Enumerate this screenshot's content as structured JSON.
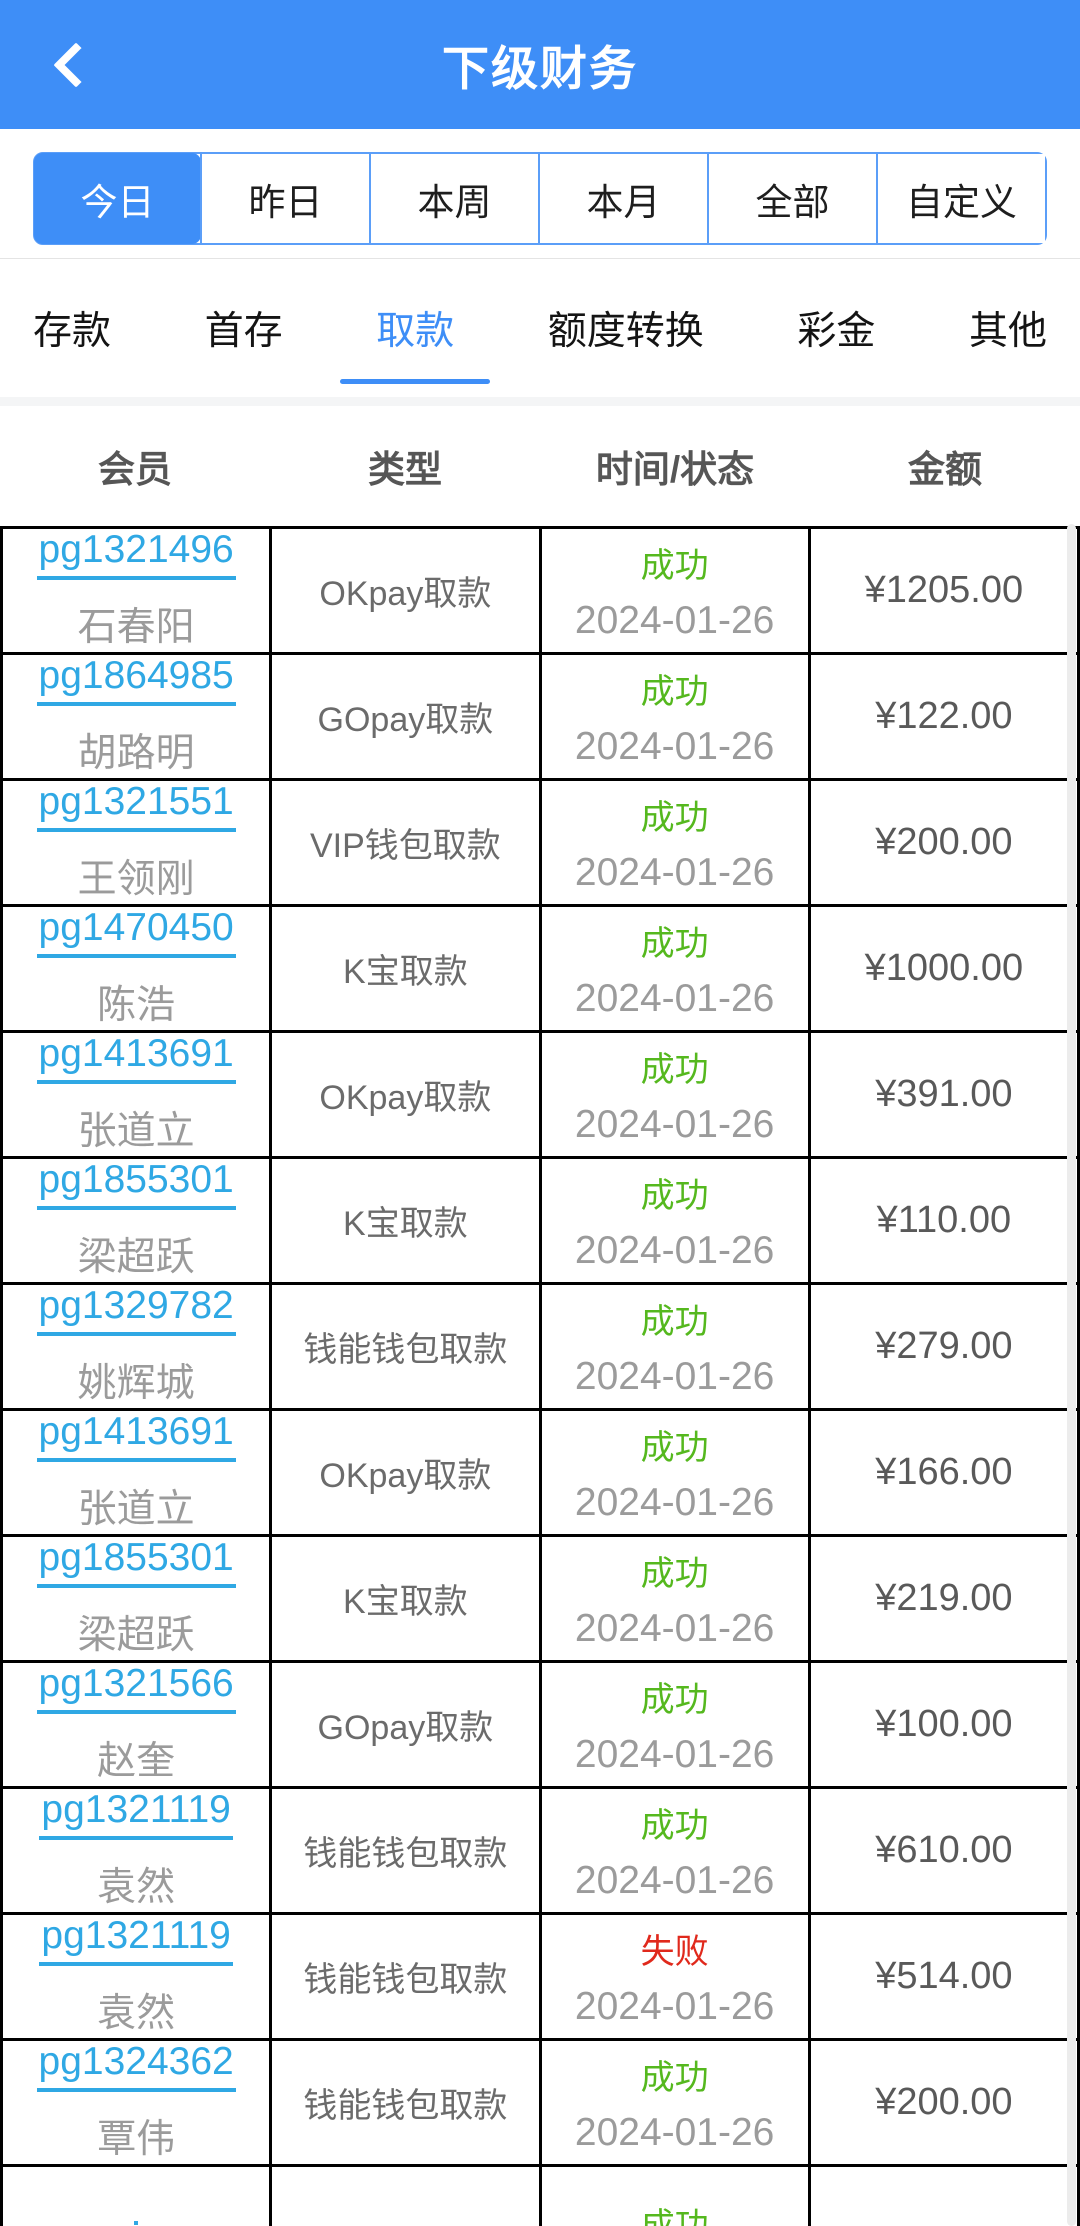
{
  "header": {
    "title": "下级财务"
  },
  "date_filters": {
    "items": [
      {
        "label": "今日",
        "active": true
      },
      {
        "label": "昨日",
        "active": false
      },
      {
        "label": "本周",
        "active": false
      },
      {
        "label": "本月",
        "active": false
      },
      {
        "label": "全部",
        "active": false
      },
      {
        "label": "自定义",
        "active": false
      }
    ]
  },
  "category_tabs": {
    "items": [
      {
        "label": "存款",
        "active": false
      },
      {
        "label": "首存",
        "active": false
      },
      {
        "label": "取款",
        "active": true
      },
      {
        "label": "额度转换",
        "active": false
      },
      {
        "label": "彩金",
        "active": false
      },
      {
        "label": "其他",
        "active": false
      }
    ]
  },
  "table": {
    "columns": [
      "会员",
      "类型",
      "时间/状态",
      "金额"
    ],
    "rows": [
      {
        "member_id": "pg1321496",
        "member_name": "石春阳",
        "type": "OKpay取款",
        "status": "成功",
        "status_state": "success",
        "date": "2024-01-26",
        "amount": "¥1205.00"
      },
      {
        "member_id": "pg1864985",
        "member_name": "胡路明",
        "type": "GOpay取款",
        "status": "成功",
        "status_state": "success",
        "date": "2024-01-26",
        "amount": "¥122.00"
      },
      {
        "member_id": "pg1321551",
        "member_name": "王领刚",
        "type": "VIP钱包取款",
        "status": "成功",
        "status_state": "success",
        "date": "2024-01-26",
        "amount": "¥200.00"
      },
      {
        "member_id": "pg1470450",
        "member_name": "陈浩",
        "type": "K宝取款",
        "status": "成功",
        "status_state": "success",
        "date": "2024-01-26",
        "amount": "¥1000.00"
      },
      {
        "member_id": "pg1413691",
        "member_name": "张道立",
        "type": "OKpay取款",
        "status": "成功",
        "status_state": "success",
        "date": "2024-01-26",
        "amount": "¥391.00"
      },
      {
        "member_id": "pg1855301",
        "member_name": "梁超跃",
        "type": "K宝取款",
        "status": "成功",
        "status_state": "success",
        "date": "2024-01-26",
        "amount": "¥110.00"
      },
      {
        "member_id": "pg1329782",
        "member_name": "姚辉城",
        "type": "钱能钱包取款",
        "status": "成功",
        "status_state": "success",
        "date": "2024-01-26",
        "amount": "¥279.00"
      },
      {
        "member_id": "pg1413691",
        "member_name": "张道立",
        "type": "OKpay取款",
        "status": "成功",
        "status_state": "success",
        "date": "2024-01-26",
        "amount": "¥166.00"
      },
      {
        "member_id": "pg1855301",
        "member_name": "梁超跃",
        "type": "K宝取款",
        "status": "成功",
        "status_state": "success",
        "date": "2024-01-26",
        "amount": "¥219.00"
      },
      {
        "member_id": "pg1321566",
        "member_name": "赵奎",
        "type": "GOpay取款",
        "status": "成功",
        "status_state": "success",
        "date": "2024-01-26",
        "amount": "¥100.00"
      },
      {
        "member_id": "pg1321119",
        "member_name": "袁然",
        "type": "钱能钱包取款",
        "status": "成功",
        "status_state": "success",
        "date": "2024-01-26",
        "amount": "¥610.00"
      },
      {
        "member_id": "pg1321119",
        "member_name": "袁然",
        "type": "钱能钱包取款",
        "status": "失败",
        "status_state": "fail",
        "date": "2024-01-26",
        "amount": "¥514.00"
      },
      {
        "member_id": "pg1324362",
        "member_name": "覃伟",
        "type": "钱能钱包取款",
        "status": "成功",
        "status_state": "success",
        "date": "2024-01-26",
        "amount": "¥200.00"
      },
      {
        "member_id": "",
        "member_name": "",
        "type": "",
        "status": "成功",
        "status_state": "success",
        "date": "",
        "amount": ""
      }
    ]
  },
  "colors": {
    "accent_blue": "#3e8ef7",
    "link_blue": "#2fa8e4",
    "success_green": "#55b81e",
    "fail_red": "#e0291c",
    "table_border": "#000000"
  }
}
